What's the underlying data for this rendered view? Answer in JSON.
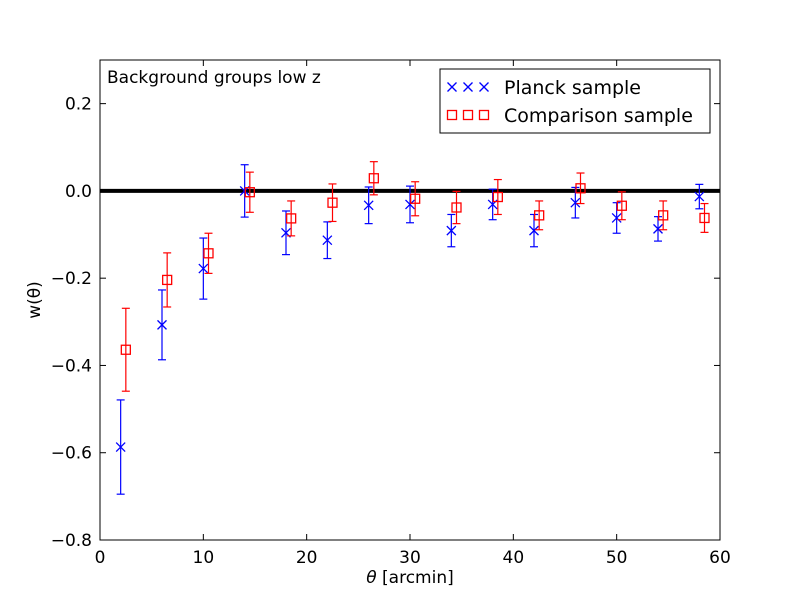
{
  "chart_data": {
    "type": "scatter",
    "title": "",
    "annotation": "Background groups low z",
    "xlabel_symbol": "θ",
    "xlabel_unit": "[arcmin]",
    "ylabel": "w(θ)",
    "xlim": [
      0,
      60
    ],
    "ylim": [
      -0.8,
      0.3
    ],
    "xticks": [
      0,
      10,
      20,
      30,
      40,
      50,
      60
    ],
    "yticks": [
      -0.8,
      -0.6,
      -0.4,
      -0.2,
      0.0,
      0.2
    ],
    "xtick_labels": [
      "0",
      "10",
      "20",
      "30",
      "40",
      "50",
      "60"
    ],
    "ytick_labels": [
      "−0.8",
      "−0.6",
      "−0.4",
      "−0.2",
      "0.0",
      "0.2"
    ],
    "reference_line": {
      "y": 0.0,
      "color": "#000000"
    },
    "legend_position": "top-right",
    "series": [
      {
        "name": "Planck sample",
        "marker": "x",
        "color": "#0000ff",
        "x": [
          2,
          6,
          10,
          14,
          18,
          22,
          26,
          30,
          34,
          38,
          42,
          46,
          50,
          54,
          58
        ],
        "y": [
          -0.587,
          -0.307,
          -0.178,
          0.0,
          -0.096,
          -0.113,
          -0.033,
          -0.031,
          -0.091,
          -0.031,
          -0.091,
          -0.027,
          -0.062,
          -0.087,
          -0.013
        ],
        "err": [
          0.108,
          0.08,
          0.07,
          0.06,
          0.05,
          0.042,
          0.042,
          0.042,
          0.037,
          0.035,
          0.037,
          0.035,
          0.035,
          0.028,
          0.028
        ]
      },
      {
        "name": "Comparison sample",
        "marker": "square",
        "color": "#ff0000",
        "x": [
          2.5,
          6.5,
          10.5,
          14.5,
          18.5,
          22.5,
          26.5,
          30.5,
          34.5,
          38.5,
          42.5,
          46.5,
          50.5,
          54.5,
          58.5
        ],
        "y": [
          -0.364,
          -0.204,
          -0.143,
          -0.003,
          -0.063,
          -0.027,
          0.029,
          -0.018,
          -0.038,
          -0.014,
          -0.056,
          0.006,
          -0.034,
          -0.056,
          -0.062
        ],
        "err": [
          0.095,
          0.062,
          0.046,
          0.046,
          0.04,
          0.043,
          0.038,
          0.039,
          0.037,
          0.04,
          0.033,
          0.035,
          0.032,
          0.033,
          0.033
        ]
      }
    ]
  }
}
